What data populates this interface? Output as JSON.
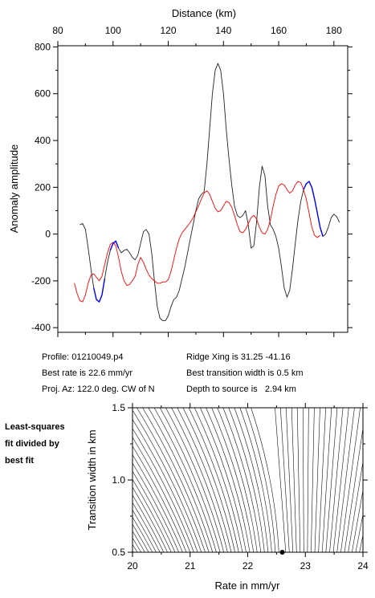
{
  "chart_data": [
    {
      "type": "line",
      "xlabel": "Distance (km)",
      "ylabel": "Anomaly amplitude",
      "xlim": [
        80,
        185
      ],
      "ylim": [
        -420,
        805
      ],
      "xticks": [
        80,
        100,
        120,
        140,
        160,
        180
      ],
      "yticks": [
        -400,
        -200,
        0,
        200,
        400,
        600,
        800
      ],
      "x_axis_position": "top",
      "grid": false,
      "series": [
        {
          "color": "#222222",
          "points": [
            [
              88,
              40
            ],
            [
              89,
              45
            ],
            [
              90,
              20
            ],
            [
              91,
              -60
            ],
            [
              92,
              -150
            ],
            [
              93,
              -230
            ],
            [
              94,
              -280
            ],
            [
              95,
              -290
            ],
            [
              96,
              -260
            ],
            [
              97,
              -190
            ],
            [
              98,
              -120
            ],
            [
              99,
              -70
            ],
            [
              100,
              -40
            ],
            [
              101,
              -30
            ],
            [
              102,
              -60
            ],
            [
              103,
              -80
            ],
            [
              104,
              -70
            ],
            [
              105,
              -65
            ],
            [
              106,
              -80
            ],
            [
              107,
              -100
            ],
            [
              108,
              -110
            ],
            [
              109,
              -90
            ],
            [
              110,
              -40
            ],
            [
              111,
              10
            ],
            [
              112,
              20
            ],
            [
              113,
              0
            ],
            [
              114,
              -80
            ],
            [
              115,
              -200
            ],
            [
              116,
              -310
            ],
            [
              117,
              -360
            ],
            [
              118,
              -370
            ],
            [
              119,
              -370
            ],
            [
              120,
              -350
            ],
            [
              121,
              -310
            ],
            [
              122,
              -280
            ],
            [
              123,
              -270
            ],
            [
              124,
              -240
            ],
            [
              125,
              -190
            ],
            [
              126,
              -140
            ],
            [
              127,
              -80
            ],
            [
              128,
              -20
            ],
            [
              129,
              40
            ],
            [
              130,
              100
            ],
            [
              131,
              150
            ],
            [
              132,
              170
            ],
            [
              133,
              180
            ],
            [
              134,
              300
            ],
            [
              135,
              450
            ],
            [
              136,
              600
            ],
            [
              137,
              700
            ],
            [
              138,
              730
            ],
            [
              139,
              700
            ],
            [
              140,
              600
            ],
            [
              141,
              450
            ],
            [
              142,
              320
            ],
            [
              143,
              210
            ],
            [
              144,
              120
            ],
            [
              145,
              80
            ],
            [
              146,
              70
            ],
            [
              147,
              80
            ],
            [
              148,
              100
            ],
            [
              149,
              40
            ],
            [
              150,
              -60
            ],
            [
              151,
              -50
            ],
            [
              152,
              50
            ],
            [
              153,
              200
            ],
            [
              154,
              290
            ],
            [
              155,
              250
            ],
            [
              156,
              120
            ],
            [
              157,
              40
            ],
            [
              158,
              20
            ],
            [
              159,
              -10
            ],
            [
              160,
              -60
            ],
            [
              161,
              -140
            ],
            [
              162,
              -230
            ],
            [
              163,
              -270
            ],
            [
              164,
              -240
            ],
            [
              165,
              -150
            ],
            [
              166,
              -40
            ],
            [
              167,
              60
            ],
            [
              168,
              140
            ],
            [
              169,
              190
            ],
            [
              170,
              215
            ],
            [
              171,
              225
            ],
            [
              172,
              200
            ],
            [
              173,
              150
            ],
            [
              174,
              90
            ],
            [
              175,
              30
            ],
            [
              176,
              -10
            ],
            [
              177,
              0
            ],
            [
              178,
              30
            ],
            [
              179,
              70
            ],
            [
              180,
              85
            ],
            [
              181,
              75
            ],
            [
              182,
              50
            ]
          ]
        },
        {
          "color": "#ff0000",
          "points": [
            [
              86,
              -210
            ],
            [
              87,
              -255
            ],
            [
              88,
              -285
            ],
            [
              89,
              -290
            ],
            [
              90,
              -260
            ],
            [
              91,
              -210
            ],
            [
              92,
              -175
            ],
            [
              93,
              -170
            ],
            [
              94,
              -185
            ],
            [
              95,
              -200
            ],
            [
              96,
              -180
            ],
            [
              97,
              -130
            ],
            [
              98,
              -80
            ],
            [
              99,
              -45
            ],
            [
              100,
              -35
            ],
            [
              101,
              -50
            ],
            [
              102,
              -100
            ],
            [
              103,
              -160
            ],
            [
              104,
              -200
            ],
            [
              105,
              -220
            ],
            [
              106,
              -215
            ],
            [
              107,
              -200
            ],
            [
              108,
              -180
            ],
            [
              109,
              -130
            ],
            [
              110,
              -100
            ],
            [
              111,
              -120
            ],
            [
              112,
              -150
            ],
            [
              113,
              -175
            ],
            [
              114,
              -190
            ],
            [
              115,
              -200
            ],
            [
              116,
              -210
            ],
            [
              117,
              -210
            ],
            [
              118,
              -205
            ],
            [
              119,
              -205
            ],
            [
              120,
              -195
            ],
            [
              121,
              -160
            ],
            [
              122,
              -110
            ],
            [
              123,
              -60
            ],
            [
              124,
              -20
            ],
            [
              125,
              5
            ],
            [
              126,
              20
            ],
            [
              127,
              35
            ],
            [
              128,
              50
            ],
            [
              129,
              70
            ],
            [
              130,
              95
            ],
            [
              131,
              120
            ],
            [
              132,
              150
            ],
            [
              133,
              175
            ],
            [
              134,
              185
            ],
            [
              135,
              170
            ],
            [
              136,
              140
            ],
            [
              137,
              110
            ],
            [
              138,
              95
            ],
            [
              139,
              100
            ],
            [
              140,
              120
            ],
            [
              141,
              140
            ],
            [
              142,
              135
            ],
            [
              143,
              115
            ],
            [
              144,
              80
            ],
            [
              145,
              40
            ],
            [
              146,
              10
            ],
            [
              147,
              5
            ],
            [
              148,
              20
            ],
            [
              149,
              45
            ],
            [
              150,
              70
            ],
            [
              151,
              80
            ],
            [
              152,
              65
            ],
            [
              153,
              30
            ],
            [
              154,
              5
            ],
            [
              155,
              0
            ],
            [
              156,
              20
            ],
            [
              157,
              60
            ],
            [
              158,
              120
            ],
            [
              159,
              170
            ],
            [
              160,
              205
            ],
            [
              161,
              215
            ],
            [
              162,
              210
            ],
            [
              163,
              190
            ],
            [
              164,
              175
            ],
            [
              165,
              185
            ],
            [
              166,
              210
            ],
            [
              167,
              225
            ],
            [
              168,
              220
            ],
            [
              169,
              190
            ],
            [
              170,
              150
            ],
            [
              171,
              90
            ],
            [
              172,
              30
            ],
            [
              173,
              -5
            ],
            [
              174,
              -15
            ],
            [
              175,
              -5
            ]
          ]
        },
        {
          "color": "#0000ff",
          "points": [
            [
              93,
              -230
            ],
            [
              94,
              -280
            ],
            [
              95,
              -290
            ],
            [
              96,
              -260
            ],
            [
              97,
              -190
            ]
          ]
        },
        {
          "color": "#0000ff",
          "points": [
            [
              99,
              -70
            ],
            [
              100,
              -40
            ],
            [
              101,
              -30
            ],
            [
              102,
              -60
            ]
          ]
        },
        {
          "color": "#0000ff",
          "points": [
            [
              169,
              190
            ],
            [
              170,
              215
            ],
            [
              171,
              225
            ],
            [
              172,
              200
            ],
            [
              173,
              150
            ],
            [
              174,
              90
            ],
            [
              175,
              30
            ],
            [
              176,
              -10
            ]
          ]
        }
      ]
    },
    {
      "type": "contour",
      "xlabel": "Rate in mm/yr",
      "ylabel": "Transition width in km",
      "xlim": [
        20,
        24
      ],
      "ylim": [
        0.5,
        1.5
      ],
      "xticks": [
        20,
        21,
        22,
        23,
        24
      ],
      "yticks": [
        0.5,
        1.0,
        1.5
      ],
      "xtick_labels": [
        "20",
        "21",
        "22",
        "23",
        "24"
      ],
      "ytick_labels": [
        "0.5",
        "1.0",
        "1.5"
      ],
      "best_fit_point": [
        22.6,
        0.5
      ],
      "grid": false
    }
  ],
  "info": {
    "profile": "Profile: 01210049.p4",
    "best_rate": "Best rate is 22.6 mm/yr",
    "proj_az": "Proj. Az: 122.0 deg. CW of N",
    "ridge_xing": "Ridge Xing is 31.25 -41.16",
    "best_transition": "Best transition width is 0.5 km",
    "depth": "Depth to source is   2.94 km"
  },
  "side_note": {
    "line1": "Least-squares",
    "line2": "fit divided by",
    "line3": "best fit"
  }
}
